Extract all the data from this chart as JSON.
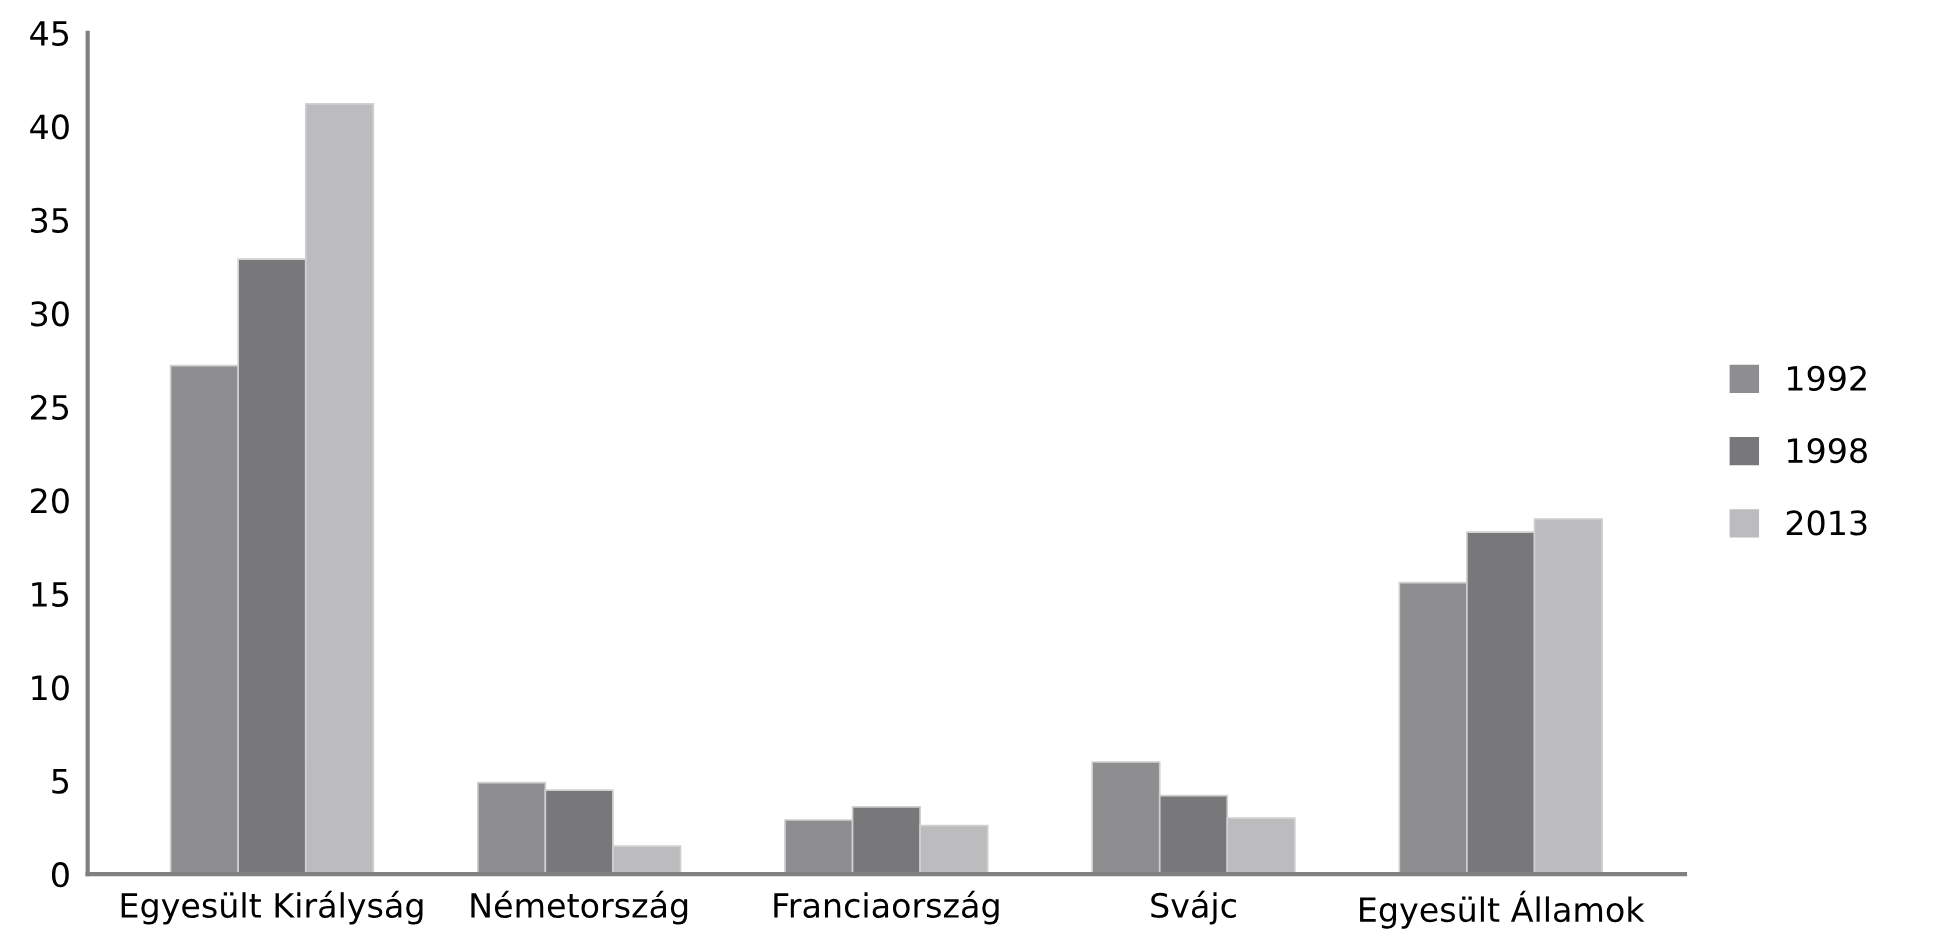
{
  "chart_data": {
    "type": "bar",
    "categories": [
      "Egyesült Királyság",
      "Németország",
      "Franciaország",
      "Svájc",
      "Egyesült Államok"
    ],
    "series": [
      {
        "name": "1992",
        "color": "#8e8e90",
        "values": [
          27.2,
          4.9,
          2.9,
          6.0,
          15.6
        ]
      },
      {
        "name": "1998",
        "color": "#78787a",
        "values": [
          32.9,
          4.5,
          3.6,
          4.2,
          18.3
        ]
      },
      {
        "name": "2013",
        "color": "#bcbcbe",
        "values": [
          41.2,
          1.5,
          2.6,
          3.0,
          19.0
        ]
      }
    ],
    "ylim": [
      0,
      45
    ],
    "yticks": [
      0,
      5,
      10,
      15,
      20,
      25,
      30,
      35,
      40,
      45
    ],
    "grid": false,
    "legend": "right"
  }
}
